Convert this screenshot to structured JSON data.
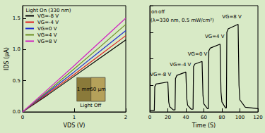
{
  "chart_data": [
    {
      "type": "line",
      "x_label": "VDS (V)",
      "y_label": "IDS (μA)",
      "xlim": [
        0,
        2
      ],
      "xticks": [
        0,
        1,
        2
      ],
      "ylim": [
        0,
        1.7
      ],
      "yticks": [
        {
          "value": 0,
          "label": "0.0"
        },
        {
          "value": 0.5,
          "label": "0.5"
        },
        {
          "value": 1,
          "label": "1.0"
        },
        {
          "value": 1.5,
          "label": "1.5"
        }
      ],
      "grid": false,
      "legend": "upper left",
      "marker": "none",
      "x": [
        0,
        0.5,
        1,
        1.5,
        2
      ],
      "series": [
        {
          "name": "VG=-8 V",
          "color": "#000000",
          "values": [
            0,
            0.28,
            0.57,
            0.86,
            1.15
          ]
        },
        {
          "name": "VG=-4 V",
          "color": "#e02020",
          "values": [
            0,
            0.3,
            0.6,
            0.91,
            1.22
          ]
        },
        {
          "name": "VG=0 V",
          "color": "#2030d0",
          "values": [
            0,
            0.32,
            0.64,
            0.97,
            1.3
          ]
        },
        {
          "name": "VG=4 V",
          "color": "#6b8e23",
          "values": [
            0,
            0.34,
            0.69,
            1.04,
            1.4
          ]
        },
        {
          "name": "VG=8 V",
          "color": "#d020c0",
          "values": [
            0,
            0.37,
            0.74,
            1.12,
            1.5
          ]
        }
      ],
      "annotations": [
        {
          "text": "Light On (330 nm)",
          "x": 0.5,
          "y": 1.62
        },
        {
          "text": "1 mm",
          "x": 1.19,
          "y": 0.36
        },
        {
          "text": "50 μm",
          "x": 1.46,
          "y": 0.36
        },
        {
          "text": "Light Off",
          "x": 1.32,
          "y": 0.1
        }
      ]
    },
    {
      "type": "line",
      "x_label": "Time (S)",
      "xlim": [
        0,
        120
      ],
      "xticks": [
        0,
        20,
        40,
        60,
        80,
        100,
        120
      ],
      "ylim": [
        0,
        1.6
      ],
      "yticks": [
        0,
        0.4,
        0.8,
        1.2,
        1.6
      ],
      "tick_labels": "x",
      "grid": false,
      "marker": "none",
      "color": "#000000",
      "x": [
        0,
        5,
        5.5,
        7,
        20,
        21,
        22,
        26,
        28,
        28.5,
        30,
        40,
        41,
        42,
        46,
        48,
        48.5,
        50,
        58,
        59,
        60,
        64,
        65,
        65.5,
        67,
        78,
        79,
        80,
        84,
        85,
        85.5,
        87,
        98,
        99,
        100,
        106,
        120
      ],
      "values": [
        0.02,
        0.02,
        0.38,
        0.42,
        0.45,
        0.15,
        0.08,
        0.03,
        0.03,
        0.5,
        0.55,
        0.6,
        0.2,
        0.1,
        0.04,
        0.04,
        0.68,
        0.72,
        0.76,
        0.25,
        0.12,
        0.05,
        0.05,
        0.92,
        0.96,
        1.02,
        0.3,
        0.15,
        0.06,
        0.06,
        1.2,
        1.25,
        1.32,
        0.4,
        0.18,
        0.07,
        0.05
      ],
      "annotations": [
        {
          "text": "on",
          "x": 5,
          "y": 1.5
        },
        {
          "text": "off",
          "x": 13,
          "y": 1.5
        },
        {
          "text": "(λ=330 nm, 0.5 mW/cm²)",
          "x": 36,
          "y": 1.38
        },
        {
          "text": "VG=-8 V",
          "x": 12,
          "y": 0.56
        },
        {
          "text": "VG=-4 V",
          "x": 34,
          "y": 0.71
        },
        {
          "text": "VG=0 V",
          "x": 53,
          "y": 0.87
        },
        {
          "text": "VG=4 V",
          "x": 72,
          "y": 1.13
        },
        {
          "text": "VG=8 V",
          "x": 91,
          "y": 1.43
        }
      ]
    }
  ]
}
